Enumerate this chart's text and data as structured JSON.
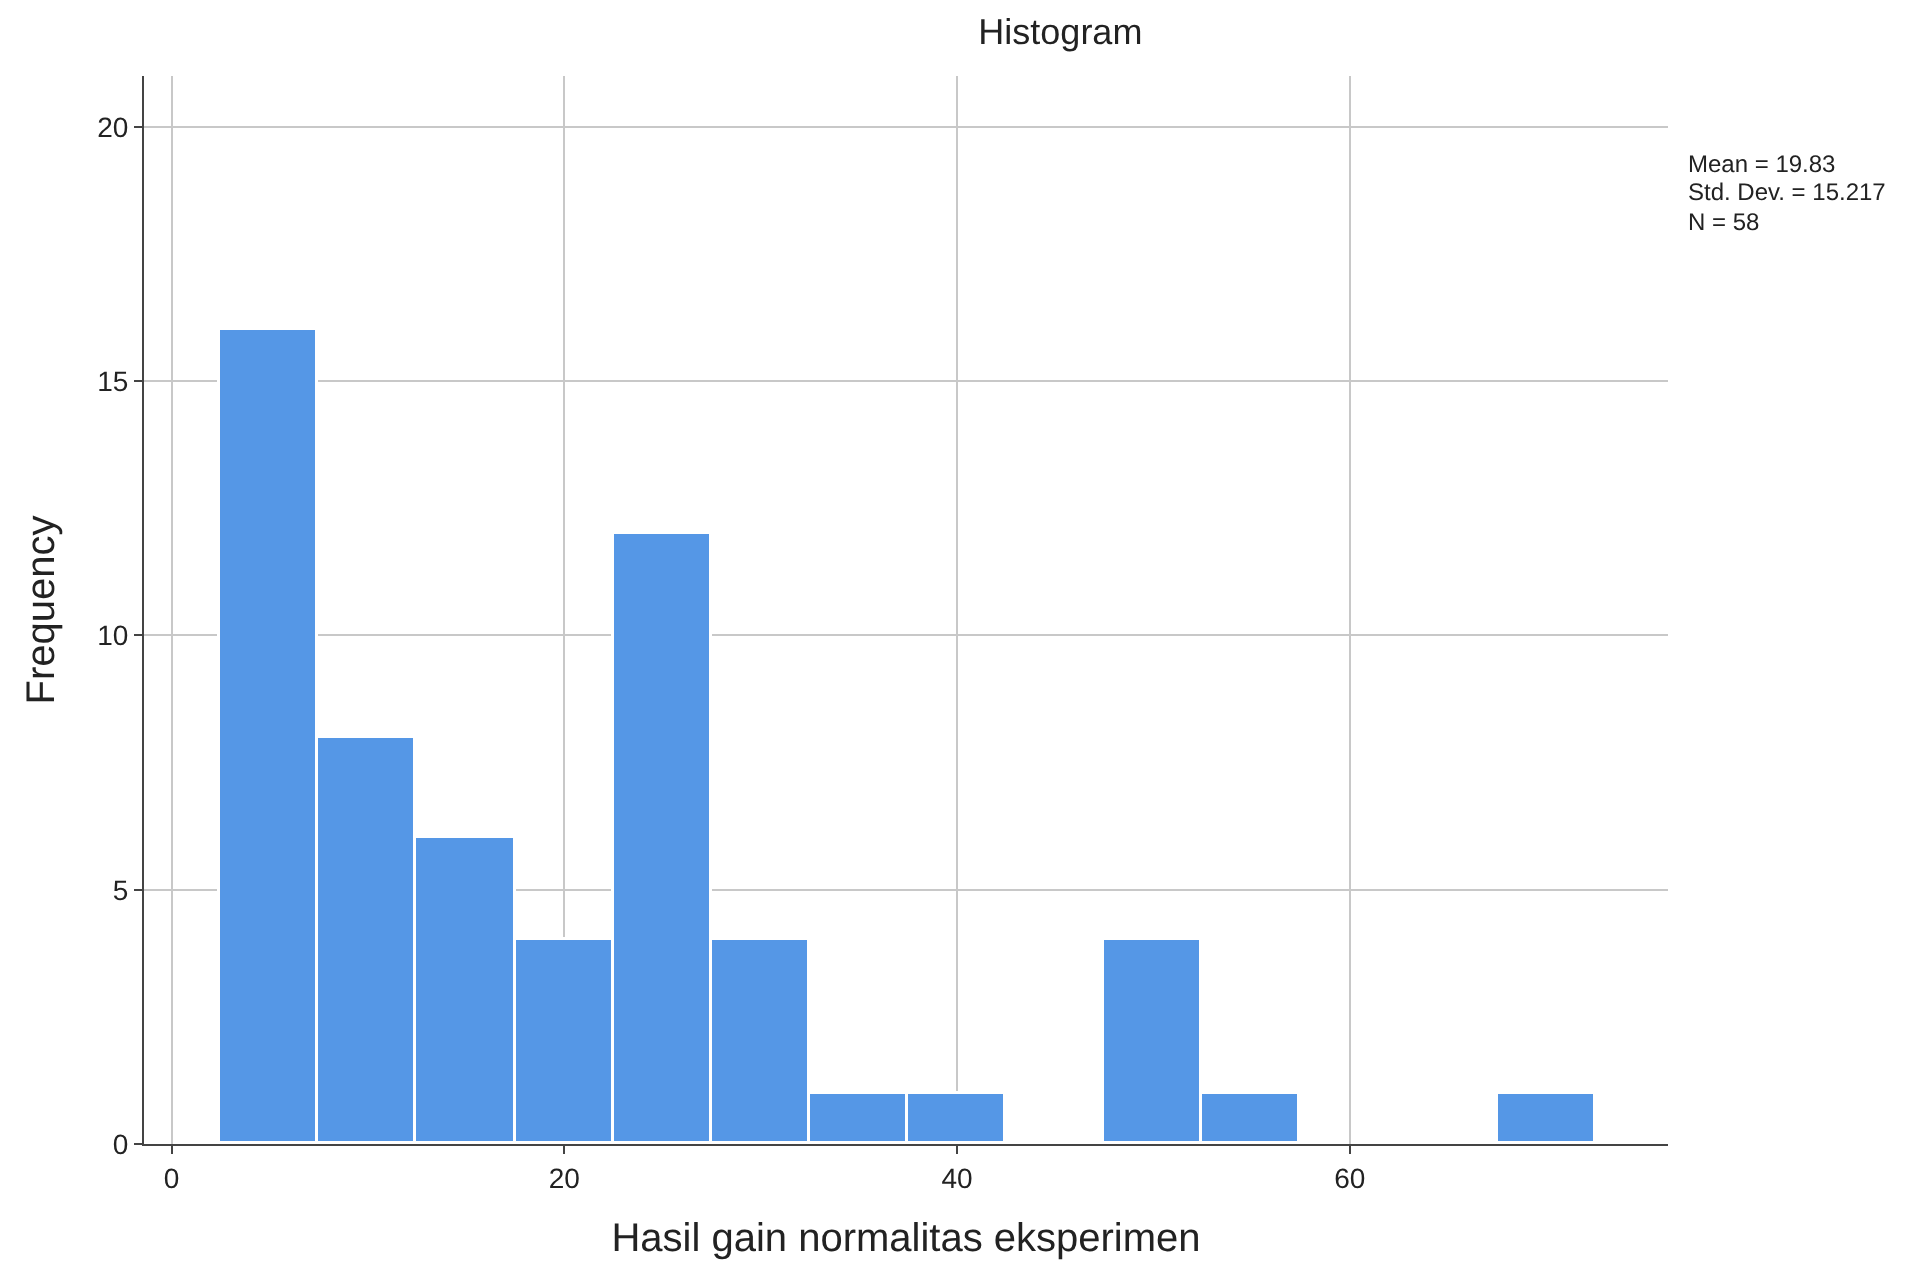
{
  "chart_data": {
    "type": "histogram",
    "title": "Histogram",
    "xlabel": "Hasil gain normalitas eksperimen",
    "ylabel": "Frequency",
    "bins": [
      2.5,
      7.5,
      12.5,
      17.5,
      22.5,
      27.5,
      32.5,
      37.5,
      42.5,
      47.5,
      52.5,
      57.5,
      62.5,
      67.5,
      72.5
    ],
    "values": [
      16,
      8,
      6,
      4,
      12,
      4,
      1,
      1,
      0,
      4,
      1,
      0,
      0,
      1
    ],
    "color": "#5597e6",
    "xlim": [
      -1.4,
      76.2
    ],
    "xticks": [
      0,
      20,
      40,
      60
    ],
    "ylim": [
      0,
      21
    ],
    "yticks": [
      0,
      5,
      10,
      15,
      20
    ],
    "grid": true,
    "annotations": [
      "Mean = 19.83",
      "Std. Dev. = 15.217",
      "N = 58"
    ]
  }
}
